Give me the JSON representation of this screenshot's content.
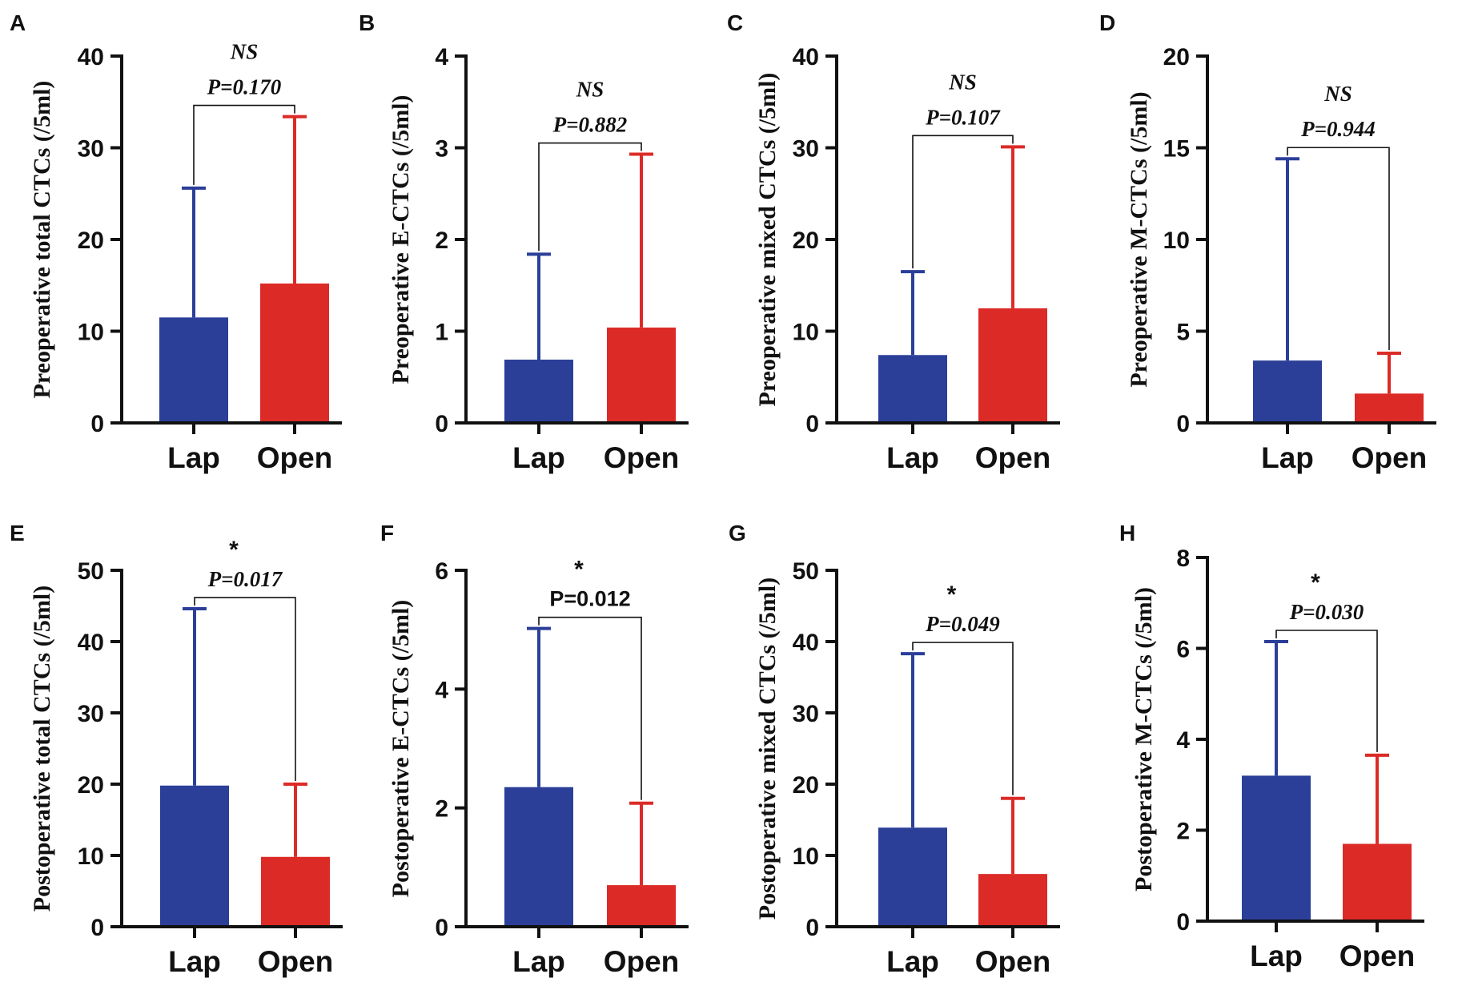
{
  "colors": {
    "lap": "#2b3f99",
    "open": "#dc2b27",
    "axis": "#111111"
  },
  "chart_data": [
    {
      "letter": "A",
      "type": "bar",
      "ylabel": "Preoperative total CTCs (/5ml)",
      "categories": [
        "Lap",
        "Open"
      ],
      "values": [
        11.5,
        15.2
      ],
      "errors_upper": [
        25.6,
        33.4
      ],
      "ylim": [
        0,
        40
      ],
      "yticks": [
        "0",
        "10",
        "20",
        "30",
        "40"
      ],
      "significance": "NS",
      "p_value": "P=0.170",
      "p_italic": true
    },
    {
      "letter": "B",
      "type": "bar",
      "ylabel": "Preoperative E-CTCs (/5ml)",
      "categories": [
        "Lap",
        "Open"
      ],
      "values": [
        0.69,
        1.04
      ],
      "errors_upper": [
        1.84,
        2.93
      ],
      "ylim": [
        0,
        4
      ],
      "yticks": [
        "0",
        "1",
        "2",
        "3",
        "4"
      ],
      "significance": "NS",
      "p_value": "P=0.882",
      "p_italic": true
    },
    {
      "letter": "C",
      "type": "bar",
      "ylabel": "Preoperative mixed CTCs (/5ml)",
      "categories": [
        "Lap",
        "Open"
      ],
      "values": [
        7.4,
        12.5
      ],
      "errors_upper": [
        16.5,
        30.1
      ],
      "ylim": [
        0,
        40
      ],
      "yticks": [
        "0",
        "10",
        "20",
        "30",
        "40"
      ],
      "significance": "NS",
      "p_value": "P=0.107",
      "p_italic": true
    },
    {
      "letter": "D",
      "type": "bar",
      "ylabel": "Preoperative M-CTCs (/5ml)",
      "categories": [
        "Lap",
        "Open"
      ],
      "values": [
        3.4,
        1.6
      ],
      "errors_upper": [
        14.4,
        3.8
      ],
      "ylim": [
        0,
        20
      ],
      "yticks": [
        "0",
        "5",
        "10",
        "15",
        "20"
      ],
      "significance": "NS",
      "p_value": "P=0.944",
      "p_italic": true
    },
    {
      "letter": "E",
      "type": "bar",
      "ylabel": "Postoperative total CTCs (/5ml)",
      "categories": [
        "Lap",
        "Open"
      ],
      "values": [
        19.8,
        9.8
      ],
      "errors_upper": [
        44.6,
        20.0
      ],
      "ylim": [
        0,
        50
      ],
      "yticks": [
        "0",
        "10",
        "20",
        "30",
        "40",
        "50"
      ],
      "significance": "*",
      "p_value": "P=0.017",
      "p_italic": true
    },
    {
      "letter": "F",
      "type": "bar",
      "ylabel": "Postoperative E-CTCs (/5ml)",
      "categories": [
        "Lap",
        "Open"
      ],
      "values": [
        2.35,
        0.7
      ],
      "errors_upper": [
        5.02,
        2.08
      ],
      "ylim": [
        0,
        6
      ],
      "yticks": [
        "0",
        "2",
        "4",
        "6"
      ],
      "significance": "*",
      "p_value": "P=0.012",
      "p_italic": false
    },
    {
      "letter": "G",
      "type": "bar",
      "ylabel": "Postoperative mixed CTCs (/5ml)",
      "categories": [
        "Lap",
        "Open"
      ],
      "values": [
        13.9,
        7.4
      ],
      "errors_upper": [
        38.3,
        18.0
      ],
      "ylim": [
        0,
        50
      ],
      "yticks": [
        "0",
        "10",
        "20",
        "30",
        "40",
        "50"
      ],
      "significance": "*",
      "p_value": "P=0.049",
      "p_italic": true
    },
    {
      "letter": "H",
      "type": "bar",
      "ylabel": "Postoperative M-CTCs (/5ml)",
      "categories": [
        "Lap",
        "Open"
      ],
      "values": [
        3.2,
        1.7
      ],
      "errors_upper": [
        6.15,
        3.65
      ],
      "ylim": [
        0,
        8
      ],
      "yticks": [
        "0",
        "2",
        "4",
        "6",
        "8"
      ],
      "significance": "*",
      "p_value": "P=0.030",
      "p_italic": true
    }
  ]
}
